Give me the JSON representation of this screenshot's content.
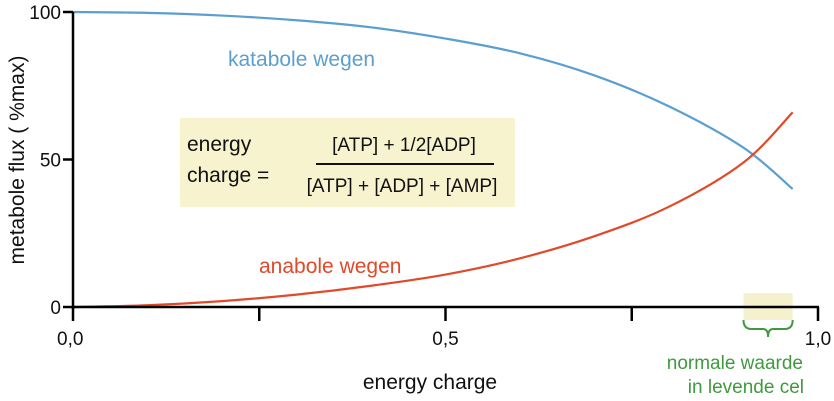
{
  "chart_data": {
    "type": "line",
    "xlabel": "energy charge",
    "ylabel": "metabole flux ( %max)",
    "xlim": [
      0,
      1.0
    ],
    "ylim": [
      0,
      100
    ],
    "x_ticks": [
      0,
      0.25,
      0.5,
      0.75,
      1.0
    ],
    "x_tick_labels": [
      {
        "value": 0,
        "label": "0,0"
      },
      {
        "value": 0.5,
        "label": "0,5"
      },
      {
        "value": 1.0,
        "label": "1,0"
      }
    ],
    "y_tick_labels": [
      {
        "value": 0,
        "label": "0"
      },
      {
        "value": 50,
        "label": "50"
      },
      {
        "value": 100,
        "label": "100"
      }
    ],
    "grid": false,
    "series": [
      {
        "name": "katabole wegen",
        "color": "#5b9fd0",
        "x": [
          0,
          0.1,
          0.2,
          0.3,
          0.4,
          0.5,
          0.6,
          0.7,
          0.8,
          0.9,
          0.966
        ],
        "y": [
          100,
          99.7,
          98.8,
          97.2,
          94.8,
          91,
          86,
          78.5,
          68,
          54,
          40
        ]
      },
      {
        "name": "anabole wegen",
        "color": "#e04a2a",
        "x": [
          0,
          0.1,
          0.2,
          0.3,
          0.4,
          0.5,
          0.6,
          0.7,
          0.8,
          0.9,
          0.966
        ],
        "y": [
          0,
          0.6,
          2,
          4.2,
          7.2,
          11,
          16.5,
          24,
          34,
          49,
          66
        ]
      }
    ],
    "annotations": {
      "formula": {
        "lhs_line1": "energy",
        "lhs_line2": "charge =",
        "numerator": "[ATP] + 1/2[ADP]",
        "denominator": "[ATP] + [ADP] + [AMP]",
        "background": "#f7f3cf"
      },
      "normal_range": {
        "x_range": [
          0.9,
          0.966
        ],
        "label_line1": "normale waarde",
        "label_line2": "in levende cel",
        "color": "#3f9a3f",
        "highlight": "#f5f1cc"
      }
    }
  }
}
